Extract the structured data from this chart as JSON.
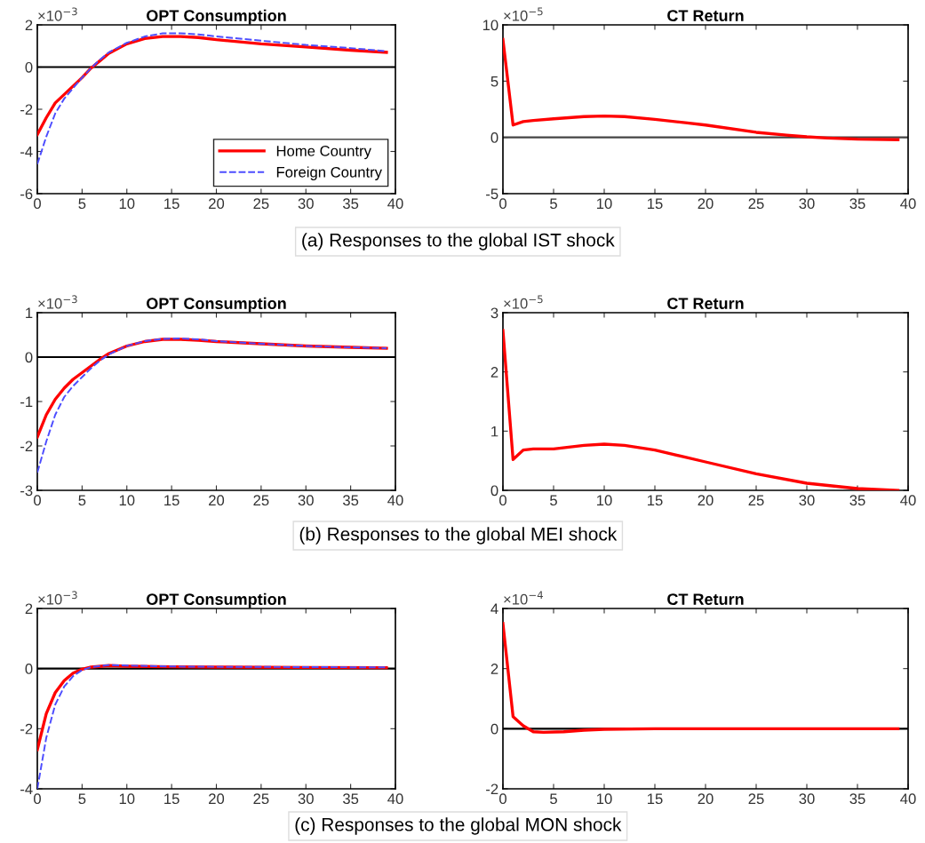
{
  "chart_data": [
    {
      "type": "line",
      "title": "OPT Consumption",
      "annotations": [
        "×10$^{−3}$",
        "(a) Responses to the global IST shock"
      ],
      "xlim": [
        0,
        40
      ],
      "xticks": [
        0,
        5,
        10,
        15,
        20,
        25,
        30,
        35,
        40
      ],
      "ylim": [
        -6,
        2
      ],
      "yticks": [
        -6,
        -4,
        -2,
        0,
        2
      ],
      "grid": false,
      "legend": "bottom right",
      "ref_lines": [
        {
          "axis": "y",
          "value": 0,
          "color": "#000000"
        }
      ],
      "series": [
        {
          "name": "Home Country",
          "color": "#ff0000",
          "line_style": "solid",
          "x": [
            0,
            1,
            2,
            3,
            4,
            5,
            6,
            7,
            8,
            10,
            12,
            14,
            16,
            18,
            20,
            25,
            30,
            35,
            39
          ],
          "values": [
            -3.2,
            -2.4,
            -1.7,
            -1.3,
            -0.9,
            -0.5,
            -0.05,
            0.3,
            0.65,
            1.1,
            1.35,
            1.45,
            1.45,
            1.4,
            1.3,
            1.1,
            0.95,
            0.8,
            0.7
          ]
        },
        {
          "name": "Foreign Country",
          "color": "#4d4dff",
          "line_style": "dashed",
          "x": [
            0,
            1,
            2,
            3,
            4,
            5,
            6,
            7,
            8,
            10,
            12,
            14,
            16,
            18,
            20,
            25,
            30,
            35,
            39
          ],
          "values": [
            -4.6,
            -3.3,
            -2.2,
            -1.5,
            -1.0,
            -0.5,
            -0.05,
            0.35,
            0.7,
            1.15,
            1.45,
            1.6,
            1.6,
            1.55,
            1.45,
            1.25,
            1.05,
            0.9,
            0.75
          ]
        }
      ]
    },
    {
      "type": "line",
      "title": "CT Return",
      "annotations": [
        "×10$^{−5}$"
      ],
      "xlim": [
        0,
        40
      ],
      "xticks": [
        0,
        5,
        10,
        15,
        20,
        25,
        30,
        35,
        40
      ],
      "ylim": [
        -5,
        10
      ],
      "yticks": [
        -5,
        0,
        5,
        10
      ],
      "grid": false,
      "ref_lines": [
        {
          "axis": "y",
          "value": 0,
          "color": "#444444"
        }
      ],
      "series": [
        {
          "color": "#ff0000",
          "line_style": "solid",
          "x": [
            0,
            1,
            2,
            3,
            5,
            8,
            10,
            12,
            15,
            18,
            20,
            25,
            28,
            30,
            32,
            35,
            39
          ],
          "values": [
            8.7,
            1.1,
            1.4,
            1.5,
            1.65,
            1.85,
            1.9,
            1.85,
            1.6,
            1.3,
            1.1,
            0.45,
            0.2,
            0.05,
            -0.05,
            -0.15,
            -0.2
          ]
        }
      ]
    },
    {
      "type": "line",
      "title": "OPT Consumption",
      "annotations": [
        "×10$^{−3}$",
        "(b) Responses to the global MEI shock"
      ],
      "xlim": [
        0,
        40
      ],
      "xticks": [
        0,
        5,
        10,
        15,
        20,
        25,
        30,
        35,
        40
      ],
      "ylim": [
        -3,
        1
      ],
      "yticks": [
        -3,
        -2,
        -1,
        0,
        1
      ],
      "grid": false,
      "ref_lines": [
        {
          "axis": "y",
          "value": 0,
          "color": "#000000"
        }
      ],
      "series": [
        {
          "color": "#ff0000",
          "line_style": "solid",
          "x": [
            0,
            1,
            2,
            3,
            4,
            5,
            6,
            7,
            8,
            10,
            12,
            14,
            16,
            18,
            20,
            25,
            30,
            35,
            39
          ],
          "values": [
            -1.8,
            -1.3,
            -0.95,
            -0.7,
            -0.5,
            -0.35,
            -0.2,
            -0.05,
            0.08,
            0.25,
            0.35,
            0.4,
            0.4,
            0.38,
            0.35,
            0.3,
            0.25,
            0.22,
            0.2
          ]
        },
        {
          "color": "#4d4dff",
          "line_style": "dashed",
          "x": [
            0,
            1,
            2,
            3,
            4,
            5,
            6,
            7,
            8,
            10,
            12,
            14,
            16,
            18,
            20,
            25,
            30,
            35,
            39
          ],
          "values": [
            -2.6,
            -1.9,
            -1.3,
            -0.9,
            -0.65,
            -0.45,
            -0.25,
            -0.08,
            0.06,
            0.25,
            0.36,
            0.41,
            0.42,
            0.4,
            0.36,
            0.3,
            0.25,
            0.22,
            0.2
          ]
        }
      ]
    },
    {
      "type": "line",
      "title": "CT Return",
      "annotations": [
        "×10$^{−5}$"
      ],
      "xlim": [
        0,
        40
      ],
      "xticks": [
        0,
        5,
        10,
        15,
        20,
        25,
        30,
        35,
        40
      ],
      "ylim": [
        0,
        3
      ],
      "yticks": [
        0,
        1,
        2,
        3
      ],
      "grid": false,
      "series": [
        {
          "color": "#ff0000",
          "line_style": "solid",
          "x": [
            0,
            1,
            2,
            3,
            5,
            8,
            10,
            12,
            15,
            18,
            20,
            25,
            30,
            35,
            39
          ],
          "values": [
            2.7,
            0.52,
            0.68,
            0.7,
            0.7,
            0.76,
            0.78,
            0.76,
            0.68,
            0.56,
            0.48,
            0.28,
            0.12,
            0.03,
            0.0
          ]
        }
      ]
    },
    {
      "type": "line",
      "title": "OPT Consumption",
      "annotations": [
        "×10$^{−3}$",
        "(c) Responses to the global MON shock"
      ],
      "xlim": [
        0,
        40
      ],
      "xticks": [
        0,
        5,
        10,
        15,
        20,
        25,
        30,
        35,
        40
      ],
      "ylim": [
        -4,
        2
      ],
      "yticks": [
        -4,
        -2,
        0,
        2
      ],
      "grid": false,
      "ref_lines": [
        {
          "axis": "y",
          "value": 0,
          "color": "#000000"
        }
      ],
      "series": [
        {
          "color": "#ff0000",
          "line_style": "solid",
          "x": [
            0,
            1,
            2,
            3,
            4,
            5,
            6,
            8,
            10,
            15,
            20,
            30,
            39
          ],
          "values": [
            -2.7,
            -1.5,
            -0.8,
            -0.4,
            -0.15,
            -0.02,
            0.05,
            0.1,
            0.08,
            0.06,
            0.05,
            0.04,
            0.03
          ]
        },
        {
          "color": "#4d4dff",
          "line_style": "dashed",
          "x": [
            0,
            1,
            2,
            3,
            4,
            5,
            6,
            8,
            10,
            15,
            20,
            30,
            39
          ],
          "values": [
            -4.0,
            -2.3,
            -1.2,
            -0.6,
            -0.25,
            -0.05,
            0.05,
            0.12,
            0.1,
            0.07,
            0.06,
            0.05,
            0.04
          ]
        }
      ]
    },
    {
      "type": "line",
      "title": "CT Return",
      "annotations": [
        "×10$^{−4}$"
      ],
      "xlim": [
        0,
        40
      ],
      "xticks": [
        0,
        5,
        10,
        15,
        20,
        25,
        30,
        35,
        40
      ],
      "ylim": [
        -2,
        4
      ],
      "yticks": [
        -2,
        0,
        2,
        4
      ],
      "grid": false,
      "ref_lines": [
        {
          "axis": "y",
          "value": 0,
          "color": "#000000"
        }
      ],
      "series": [
        {
          "color": "#ff0000",
          "line_style": "solid",
          "x": [
            0,
            1,
            2,
            3,
            4,
            6,
            8,
            10,
            15,
            39
          ],
          "values": [
            3.5,
            0.4,
            0.1,
            -0.1,
            -0.12,
            -0.1,
            -0.05,
            -0.02,
            0,
            0
          ]
        }
      ]
    }
  ]
}
